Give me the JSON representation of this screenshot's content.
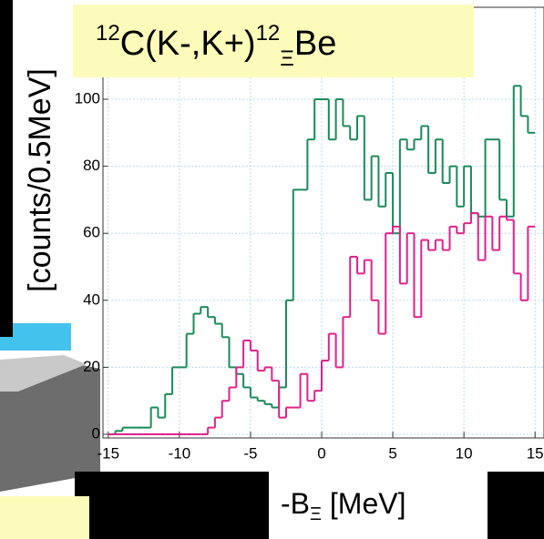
{
  "chart_data": {
    "type": "histogram",
    "title": {
      "mass_before": "12",
      "main": "C(K-,K+)",
      "mass_after": "12",
      "subscript": "Ξ",
      "end": "Be"
    },
    "y_label": "[counts/0.5MeV]",
    "x_label": {
      "main": "-B",
      "subscript": "Ξ",
      "unit": " [MeV]"
    },
    "bins": [
      -15,
      -14.5,
      -14,
      -13.5,
      -13,
      -12.5,
      -12,
      -11.5,
      -11,
      -10.5,
      -10,
      -9.5,
      -9,
      -8.5,
      -8,
      -7.5,
      -7,
      -6.5,
      -6,
      -5.5,
      -5,
      -4.5,
      -4,
      -3.5,
      -3,
      -2.5,
      -2,
      -1.5,
      -1,
      -0.5,
      0,
      0.5,
      1,
      1.5,
      2,
      2.5,
      3,
      3.5,
      4,
      4.5,
      5,
      5.5,
      6,
      6.5,
      7,
      7.5,
      8,
      8.5,
      9,
      9.5,
      10,
      10.5,
      11,
      11.5,
      12,
      12.5,
      13,
      13.5,
      14,
      14.5,
      15
    ],
    "series": [
      {
        "color": "#1a8a5a",
        "values": [
          0,
          1,
          2,
          2,
          2,
          2,
          8,
          5,
          12,
          20,
          20,
          30,
          36,
          38,
          35,
          33,
          29,
          20,
          18,
          14,
          11,
          10,
          9,
          8,
          14,
          40,
          73,
          73,
          88,
          100,
          100,
          88,
          100,
          92,
          88,
          95,
          70,
          83,
          68,
          78,
          60,
          88,
          85,
          88,
          92,
          78,
          88,
          75,
          80,
          68,
          80,
          66,
          65,
          88,
          88,
          70,
          65,
          104,
          95,
          90
        ]
      },
      {
        "color": "#e0208a",
        "values": [
          0,
          0,
          0,
          0,
          0,
          0,
          0,
          0,
          0,
          0,
          0,
          0,
          0,
          0,
          2,
          5,
          10,
          14,
          20,
          28,
          25,
          19,
          20,
          16,
          5,
          8,
          8,
          18,
          10,
          13,
          22,
          30,
          20,
          35,
          53,
          48,
          52,
          40,
          30,
          60,
          62,
          45,
          60,
          35,
          58,
          55,
          58,
          55,
          62,
          60,
          63,
          66,
          52,
          65,
          55,
          65,
          64,
          48,
          40,
          62
        ]
      }
    ],
    "xlim": [
      -15.5,
      15.5
    ],
    "ylim": [
      0,
      128
    ],
    "xticks": [
      -15,
      -10,
      -5,
      0,
      5,
      10,
      15
    ],
    "yticks": [
      0,
      20,
      40,
      60,
      80,
      100
    ],
    "grid": true
  }
}
